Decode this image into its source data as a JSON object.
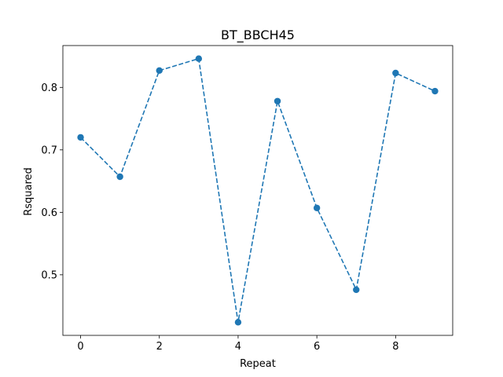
{
  "chart_data": {
    "type": "line",
    "title": "BT_BBCH45",
    "xlabel": "Repeat",
    "ylabel": "Rsquared",
    "x": [
      0,
      1,
      2,
      3,
      4,
      5,
      6,
      7,
      8,
      9
    ],
    "series": [
      {
        "values": [
          0.72,
          0.657,
          0.827,
          0.846,
          0.424,
          0.778,
          0.607,
          0.476,
          0.823,
          0.794
        ],
        "color": "#1f77b4",
        "line_style": "dashed",
        "marker": "circle"
      }
    ],
    "xlim": [
      -0.45,
      9.45
    ],
    "ylim": [
      0.403,
      0.867
    ],
    "xticks": [
      0,
      2,
      4,
      6,
      8
    ],
    "yticks": [
      0.5,
      0.6,
      0.7,
      0.8
    ],
    "ytick_labels": [
      "0.5",
      "0.6",
      "0.7",
      "0.8"
    ],
    "grid": false,
    "legend": "none"
  }
}
